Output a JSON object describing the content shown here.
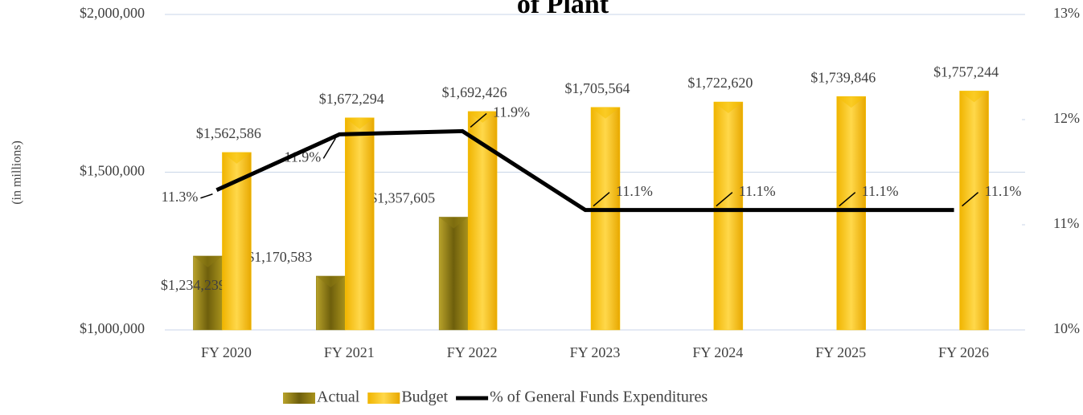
{
  "chart_data": {
    "type": "bar",
    "title": "of Plant",
    "y_axis_label": "(in millions)",
    "categories": [
      "FY 2020",
      "FY 2021",
      "FY 2022",
      "FY 2023",
      "FY 2024",
      "FY 2025",
      "FY 2026"
    ],
    "series": [
      {
        "name": "Actual",
        "color": "#8c7a12",
        "values": [
          1234239,
          1170583,
          1357605,
          null,
          null,
          null,
          null
        ],
        "value_labels": [
          "$1,234,239",
          "$1,170,583",
          "$1,357,605",
          null,
          null,
          null,
          null
        ]
      },
      {
        "name": "Budget",
        "color": "#f5c000",
        "values": [
          1562586,
          1672294,
          1692426,
          1705564,
          1722620,
          1739846,
          1757244
        ],
        "value_labels": [
          "$1,562,586",
          "$1,672,294",
          "$1,692,426",
          "$1,705,564",
          "$1,722,620",
          "$1,739,846",
          "$1,757,244"
        ]
      },
      {
        "name": "% of General Funds Expenditures",
        "type": "line",
        "axis": "y2",
        "color": "#000000",
        "values": [
          11.33,
          11.86,
          11.89,
          11.14,
          11.14,
          11.14,
          11.14
        ],
        "value_labels": [
          "11.3%",
          "11.9%",
          "11.9%",
          "11.1%",
          "11.1%",
          "11.1%",
          "11.1%"
        ]
      }
    ],
    "ylim": [
      1000000,
      2000000
    ],
    "yticks": [
      {
        "value": 1000000,
        "label": "$1,000,000"
      },
      {
        "value": 1500000,
        "label": "$1,500,000"
      },
      {
        "value": 2000000,
        "label": "$2,000,000"
      }
    ],
    "y2lim": [
      10,
      13
    ],
    "y2ticks": [
      {
        "value": 10,
        "label": "10%"
      },
      {
        "value": 11,
        "label": "11%"
      },
      {
        "value": 12,
        "label": "12%"
      },
      {
        "value": 13,
        "label": "13%"
      }
    ],
    "grid": true,
    "legend": "bottom"
  }
}
